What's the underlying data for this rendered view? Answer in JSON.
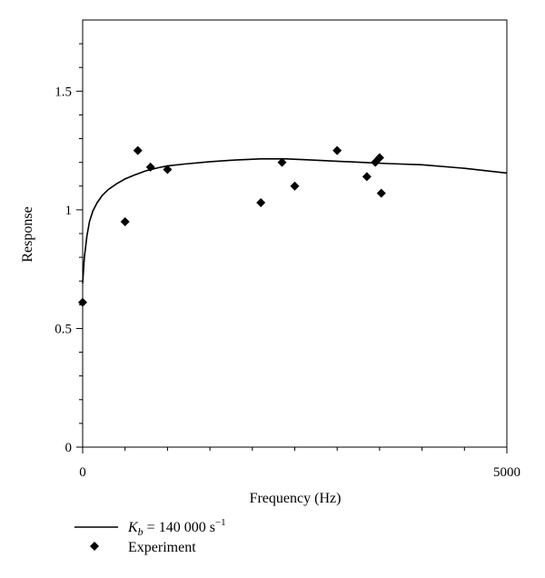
{
  "chart_data": {
    "type": "scatter",
    "title": "",
    "xlabel": "Frequency (Hz)",
    "ylabel": "Response",
    "xlim": [
      0,
      5000
    ],
    "ylim": [
      0,
      1.8
    ],
    "x_ticks": [
      0,
      5000
    ],
    "x_tick_labels": [
      "0",
      "5000"
    ],
    "y_ticks": [
      0,
      0.5,
      1,
      1.5
    ],
    "y_tick_labels": [
      "0",
      "0.5",
      "1",
      "1.5"
    ],
    "grid": false,
    "legend_placement": "bottom-left, below plot",
    "series": [
      {
        "name": "K_b = 140 000 s^-1",
        "kind": "line",
        "color": "#000000",
        "x": [
          0,
          20,
          50,
          80,
          120,
          170,
          230,
          300,
          400,
          500,
          600,
          750,
          900,
          1000,
          1200,
          1500,
          1800,
          2100,
          2400,
          2700,
          3000,
          3300,
          3600,
          4000,
          4500,
          5000
        ],
        "y": [
          0.69,
          0.8,
          0.89,
          0.95,
          0.995,
          1.03,
          1.06,
          1.085,
          1.11,
          1.13,
          1.145,
          1.165,
          1.178,
          1.185,
          1.193,
          1.203,
          1.21,
          1.215,
          1.215,
          1.21,
          1.205,
          1.2,
          1.195,
          1.19,
          1.175,
          1.155
        ]
      },
      {
        "name": "Experiment",
        "kind": "scatter",
        "marker": "diamond",
        "color": "#000000",
        "x": [
          0,
          500,
          650,
          800,
          1000,
          2100,
          2350,
          2500,
          3000,
          3350,
          3450,
          3500,
          3520
        ],
        "y": [
          0.61,
          0.95,
          1.25,
          1.18,
          1.17,
          1.03,
          1.2,
          1.1,
          1.25,
          1.14,
          1.2,
          1.22,
          1.07
        ]
      }
    ],
    "legend": {
      "line_label_base": "K",
      "line_label_sub": "b",
      "line_label_value": " = 140 000 s",
      "line_label_sup": "−1",
      "marker_label": "Experiment"
    }
  }
}
